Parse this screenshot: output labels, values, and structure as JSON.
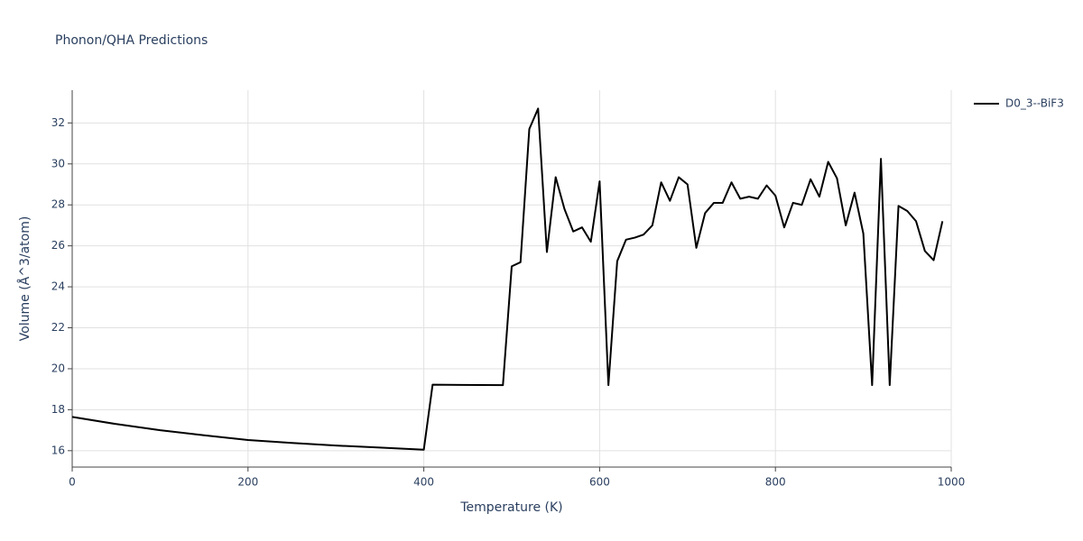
{
  "chart_data": {
    "type": "line",
    "title": "Phonon/QHA Predictions",
    "x_label": "Temperature (K)",
    "y_label": "Volume (Å^3/atom)",
    "x": [
      0,
      50,
      100,
      150,
      200,
      250,
      300,
      350,
      400,
      410,
      490,
      500,
      510,
      520,
      530,
      540,
      550,
      560,
      570,
      580,
      590,
      600,
      610,
      620,
      630,
      640,
      650,
      660,
      670,
      680,
      690,
      700,
      710,
      720,
      730,
      740,
      750,
      760,
      770,
      780,
      790,
      800,
      810,
      820,
      830,
      840,
      850,
      860,
      870,
      880,
      890,
      900,
      910,
      920,
      930,
      940,
      950,
      960,
      970,
      980,
      990
    ],
    "series": [
      {
        "name": "D0_3--BiF3",
        "color": "#000000",
        "values": [
          17.65,
          17.3,
          17.0,
          16.75,
          16.52,
          16.38,
          16.25,
          16.15,
          16.05,
          19.22,
          19.2,
          25.0,
          25.2,
          31.7,
          32.7,
          25.7,
          29.35,
          27.8,
          26.7,
          26.9,
          26.2,
          29.15,
          19.2,
          25.25,
          26.3,
          26.4,
          26.55,
          27.0,
          29.1,
          28.2,
          29.35,
          29.0,
          25.9,
          27.6,
          28.1,
          28.1,
          29.1,
          28.3,
          28.4,
          28.3,
          28.95,
          28.45,
          26.9,
          28.1,
          28.0,
          29.25,
          28.4,
          30.1,
          29.3,
          27.0,
          28.6,
          26.6,
          19.2,
          30.25,
          19.2,
          27.95,
          27.7,
          27.2,
          25.75,
          25.3,
          27.2
        ]
      }
    ],
    "xlim": [
      0,
      1000
    ],
    "xticks": [
      0,
      200,
      400,
      600,
      800,
      1000
    ],
    "ylim": [
      15.2,
      33.6
    ],
    "yticks": [
      16,
      18,
      20,
      22,
      24,
      26,
      28,
      30,
      32
    ],
    "grid": true,
    "legend": "right"
  }
}
